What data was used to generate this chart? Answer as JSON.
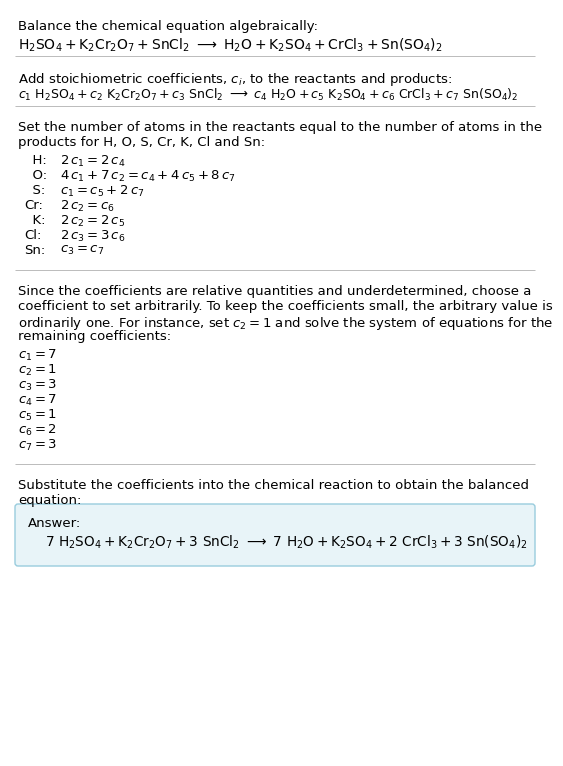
{
  "bg_color": "#ffffff",
  "text_color": "#000000",
  "separator_color": "#bbbbbb",
  "answer_box_color": "#e8f4f8",
  "answer_box_border": "#99ccdd",
  "font_size": 9.5,
  "sections": {
    "s1_title": "Balance the chemical equation algebraically:",
    "s2_title": "Add stoichiometric coefficients, $c_i$, to the reactants and products:",
    "s3_title_l1": "Set the number of atoms in the reactants equal to the number of atoms in the",
    "s3_title_l2": "products for H, O, S, Cr, K, Cl and Sn:",
    "s4_l1": "Since the coefficients are relative quantities and underdetermined, choose a",
    "s4_l2": "coefficient to set arbitrarily. To keep the coefficients small, the arbitrary value is",
    "s4_l3": "ordinarily one. For instance, set $c_2 = 1$ and solve the system of equations for the",
    "s4_l4": "remaining coefficients:",
    "s5_l1": "Substitute the coefficients into the chemical reaction to obtain the balanced",
    "s5_l2": "equation:",
    "answer_label": "Answer:"
  },
  "eq1": "$\\mathrm{H_2SO_4 + K_2Cr_2O_7 + SnCl_2} \\ \\longrightarrow \\ \\mathrm{H_2O + K_2SO_4 + CrCl_3 + Sn(SO_4)_2}$",
  "eq2": "$c_1\\ \\mathrm{H_2SO_4} + c_2\\ \\mathrm{K_2Cr_2O_7} + c_3\\ \\mathrm{SnCl_2} \\ \\longrightarrow \\ c_4\\ \\mathrm{H_2O} + c_5\\ \\mathrm{K_2SO_4} + c_6\\ \\mathrm{CrCl_3} + c_7\\ \\mathrm{Sn(SO_4)_2}$",
  "atom_rows": [
    [
      "  H:",
      "$2\\,c_1 = 2\\,c_4$"
    ],
    [
      "  O:",
      "$4\\,c_1 + 7\\,c_2 = c_4 + 4\\,c_5 + 8\\,c_7$"
    ],
    [
      "  S:",
      "$c_1 = c_5 + 2\\,c_7$"
    ],
    [
      "Cr:",
      "$2\\,c_2 = c_6$"
    ],
    [
      "  K:",
      "$2\\,c_2 = 2\\,c_5$"
    ],
    [
      "Cl:",
      "$2\\,c_3 = 3\\,c_6$"
    ],
    [
      "Sn:",
      "$c_3 = c_7$"
    ]
  ],
  "solutions": [
    "$c_1 = 7$",
    "$c_2 = 1$",
    "$c_3 = 3$",
    "$c_4 = 7$",
    "$c_5 = 1$",
    "$c_6 = 2$",
    "$c_7 = 3$"
  ],
  "ans_eq": "$7\\ \\mathrm{H_2SO_4} + \\mathrm{K_2Cr_2O_7} + 3\\ \\mathrm{SnCl_2} \\ \\longrightarrow \\ 7\\ \\mathrm{H_2O} + \\mathrm{K_2SO_4} + 2\\ \\mathrm{CrCl_3} + 3\\ \\mathrm{Sn(SO_4)_2}$"
}
